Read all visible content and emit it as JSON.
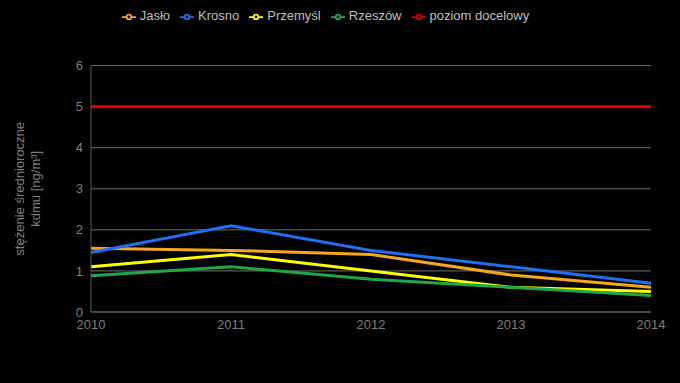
{
  "chart_data": {
    "type": "line",
    "categories": [
      "2010",
      "2011",
      "2012",
      "2013",
      "2014"
    ],
    "series": [
      {
        "name": "Przemyśl",
        "color": "#ffff00",
        "values": [
          1.1,
          1.4,
          1.0,
          0.6,
          0.5
        ]
      },
      {
        "name": "Jasło",
        "color": "#f5a623",
        "values": [
          1.55,
          1.5,
          1.4,
          0.9,
          0.6
        ]
      },
      {
        "name": "Rzeszów",
        "color": "#1fa84a",
        "values": [
          0.88,
          1.1,
          0.8,
          0.6,
          0.4
        ]
      },
      {
        "name": "Krosno",
        "color": "#1f6ff0",
        "values": [
          1.45,
          2.1,
          1.5,
          1.1,
          0.7
        ]
      },
      {
        "name": "poziom docelowy",
        "color": "#e00000",
        "values": [
          5,
          5,
          5,
          5,
          5
        ]
      }
    ],
    "ylim": [
      0,
      6
    ],
    "yticks": [
      0,
      1,
      2,
      3,
      4,
      5,
      6
    ],
    "ylabel": "stężenie średnioroczne kdmu [ng/m³]",
    "grid": true,
    "legend": "top"
  }
}
